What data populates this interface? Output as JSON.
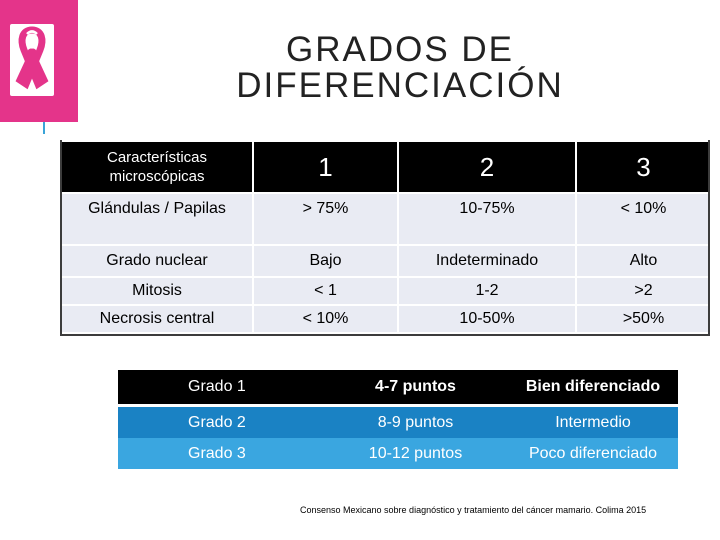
{
  "title": "GRADOS DE DIFERENCIACIÓN",
  "colors": {
    "logo_bg": "#e4348a",
    "header_bg": "#000000",
    "row_bg": "#e9ebf3",
    "grade2_bg": "#1a82c4",
    "grade3_bg": "#3aa6e0"
  },
  "logo": {
    "icon": "pink-ribbon-icon"
  },
  "main_table": {
    "header": [
      "Características microscópicas",
      "1",
      "2",
      "3"
    ],
    "rows": [
      [
        "Glándulas / Papilas",
        "> 75%",
        "10-75%",
        "< 10%"
      ],
      [
        "Grado nuclear",
        "Bajo",
        "Indeterminado",
        "Alto"
      ],
      [
        "Mitosis",
        "< 1",
        "1-2",
        ">2"
      ],
      [
        "Necrosis central",
        "< 10%",
        "10-50%",
        ">50%"
      ]
    ]
  },
  "grade_table": [
    [
      "Grado 1",
      "4-7 puntos",
      "Bien diferenciado"
    ],
    [
      "Grado 2",
      "8-9 puntos",
      "Intermedio"
    ],
    [
      "Grado 3",
      "10-12 puntos",
      "Poco diferenciado"
    ]
  ],
  "footnote": "Consenso Mexicano sobre diagnóstico y tratamiento del cáncer mamario. Colima 2015"
}
